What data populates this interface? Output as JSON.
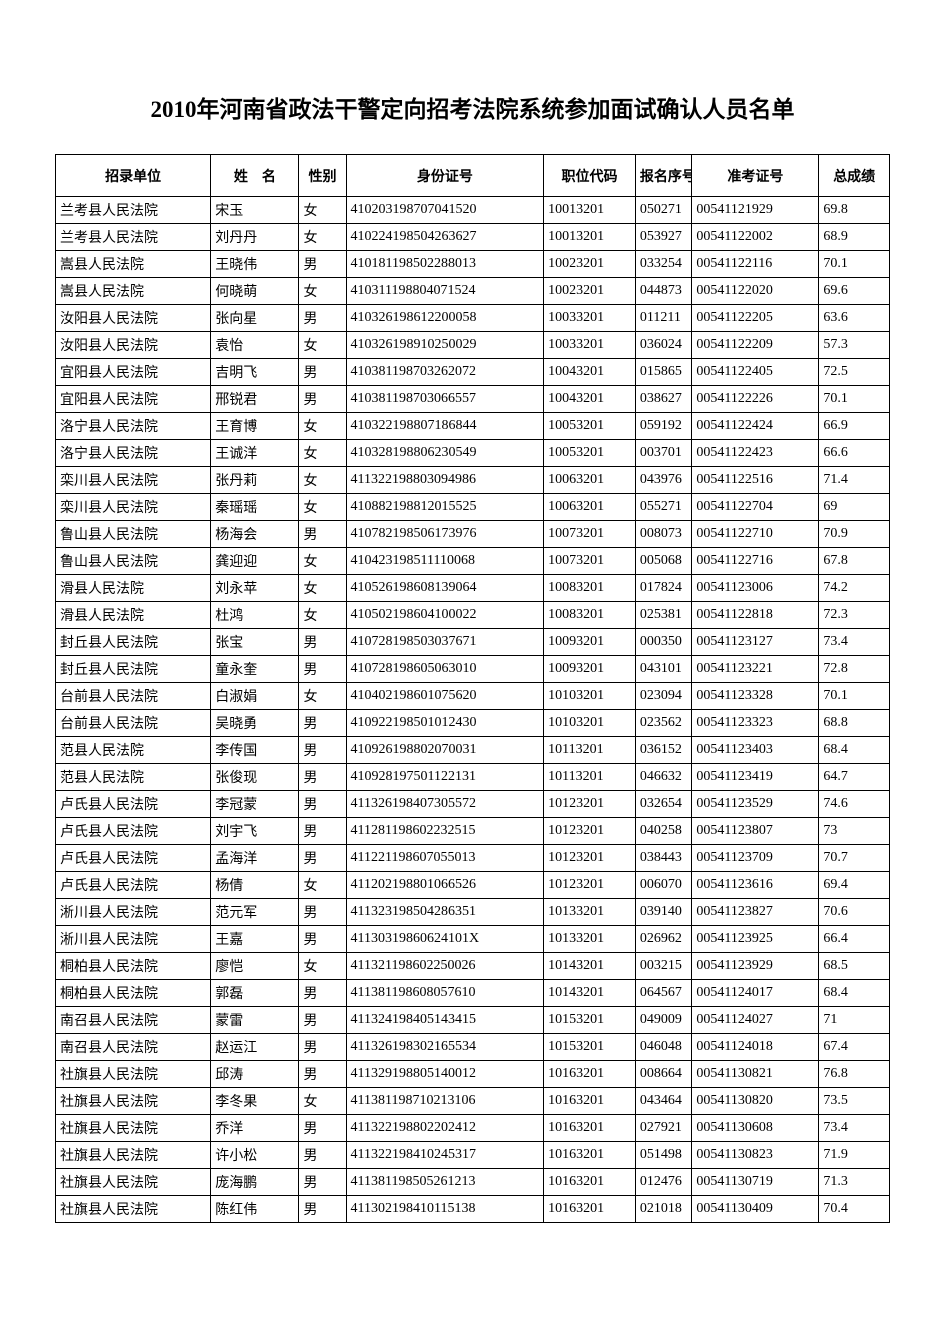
{
  "title": "2010年河南省政法干警定向招考法院系统参加面试确认人员名单",
  "columns": [
    "招录单位",
    "姓　名",
    "性别",
    "身份证号",
    "职位代码",
    "报名序号",
    "准考证号",
    "总成绩"
  ],
  "rows": [
    {
      "unit": "兰考县人民法院",
      "name": "宋玉",
      "gender": "女",
      "id": "410203198707041520",
      "position": "10013201",
      "seq": "050271",
      "exam": "00541121929",
      "score": "69.8"
    },
    {
      "unit": "兰考县人民法院",
      "name": "刘丹丹",
      "gender": "女",
      "id": "410224198504263627",
      "position": "10013201",
      "seq": "053927",
      "exam": "00541122002",
      "score": "68.9"
    },
    {
      "unit": "嵩县人民法院",
      "name": "王晓伟",
      "gender": "男",
      "id": "410181198502288013",
      "position": "10023201",
      "seq": "033254",
      "exam": "00541122116",
      "score": "70.1"
    },
    {
      "unit": "嵩县人民法院",
      "name": "何晓萌",
      "gender": "女",
      "id": "410311198804071524",
      "position": "10023201",
      "seq": "044873",
      "exam": "00541122020",
      "score": "69.6"
    },
    {
      "unit": "汝阳县人民法院",
      "name": "张向星",
      "gender": "男",
      "id": "410326198612200058",
      "position": "10033201",
      "seq": "011211",
      "exam": "00541122205",
      "score": "63.6"
    },
    {
      "unit": "汝阳县人民法院",
      "name": "袁怡",
      "gender": "女",
      "id": "410326198910250029",
      "position": "10033201",
      "seq": "036024",
      "exam": "00541122209",
      "score": "57.3"
    },
    {
      "unit": "宜阳县人民法院",
      "name": "吉明飞",
      "gender": "男",
      "id": "410381198703262072",
      "position": "10043201",
      "seq": "015865",
      "exam": "00541122405",
      "score": "72.5"
    },
    {
      "unit": "宜阳县人民法院",
      "name": "邢锐君",
      "gender": "男",
      "id": "410381198703066557",
      "position": "10043201",
      "seq": "038627",
      "exam": "00541122226",
      "score": "70.1"
    },
    {
      "unit": "洛宁县人民法院",
      "name": "王育博",
      "gender": "女",
      "id": "410322198807186844",
      "position": "10053201",
      "seq": "059192",
      "exam": "00541122424",
      "score": "66.9"
    },
    {
      "unit": "洛宁县人民法院",
      "name": "王诚洋",
      "gender": "女",
      "id": "410328198806230549",
      "position": "10053201",
      "seq": "003701",
      "exam": "00541122423",
      "score": "66.6"
    },
    {
      "unit": "栾川县人民法院",
      "name": "张丹莉",
      "gender": "女",
      "id": "411322198803094986",
      "position": "10063201",
      "seq": "043976",
      "exam": "00541122516",
      "score": "71.4"
    },
    {
      "unit": "栾川县人民法院",
      "name": "秦瑶瑶",
      "gender": "女",
      "id": "410882198812015525",
      "position": "10063201",
      "seq": "055271",
      "exam": "00541122704",
      "score": "69"
    },
    {
      "unit": "鲁山县人民法院",
      "name": "杨海会",
      "gender": "男",
      "id": "410782198506173976",
      "position": "10073201",
      "seq": "008073",
      "exam": "00541122710",
      "score": "70.9"
    },
    {
      "unit": "鲁山县人民法院",
      "name": "龚迎迎",
      "gender": "女",
      "id": "410423198511110068",
      "position": "10073201",
      "seq": "005068",
      "exam": "00541122716",
      "score": "67.8"
    },
    {
      "unit": "滑县人民法院",
      "name": "刘永苹",
      "gender": "女",
      "id": "410526198608139064",
      "position": "10083201",
      "seq": "017824",
      "exam": "00541123006",
      "score": "74.2"
    },
    {
      "unit": "滑县人民法院",
      "name": "杜鸿",
      "gender": "女",
      "id": "410502198604100022",
      "position": "10083201",
      "seq": "025381",
      "exam": "00541122818",
      "score": "72.3"
    },
    {
      "unit": "封丘县人民法院",
      "name": "张宝",
      "gender": "男",
      "id": "410728198503037671",
      "position": "10093201",
      "seq": "000350",
      "exam": "00541123127",
      "score": "73.4"
    },
    {
      "unit": "封丘县人民法院",
      "name": "童永奎",
      "gender": "男",
      "id": "410728198605063010",
      "position": "10093201",
      "seq": "043101",
      "exam": "00541123221",
      "score": "72.8"
    },
    {
      "unit": "台前县人民法院",
      "name": "白淑娟",
      "gender": "女",
      "id": "410402198601075620",
      "position": "10103201",
      "seq": "023094",
      "exam": "00541123328",
      "score": "70.1"
    },
    {
      "unit": "台前县人民法院",
      "name": "吴晓勇",
      "gender": "男",
      "id": "410922198501012430",
      "position": "10103201",
      "seq": "023562",
      "exam": "00541123323",
      "score": "68.8"
    },
    {
      "unit": "范县人民法院",
      "name": "李传国",
      "gender": "男",
      "id": "410926198802070031",
      "position": "10113201",
      "seq": "036152",
      "exam": "00541123403",
      "score": "68.4"
    },
    {
      "unit": "范县人民法院",
      "name": "张俊现",
      "gender": "男",
      "id": "410928197501122131",
      "position": "10113201",
      "seq": "046632",
      "exam": "00541123419",
      "score": "64.7"
    },
    {
      "unit": "卢氏县人民法院",
      "name": "李冠蒙",
      "gender": "男",
      "id": "411326198407305572",
      "position": "10123201",
      "seq": "032654",
      "exam": "00541123529",
      "score": "74.6"
    },
    {
      "unit": "卢氏县人民法院",
      "name": "刘宇飞",
      "gender": "男",
      "id": "411281198602232515",
      "position": "10123201",
      "seq": "040258",
      "exam": "00541123807",
      "score": "73"
    },
    {
      "unit": "卢氏县人民法院",
      "name": "孟海洋",
      "gender": "男",
      "id": "411221198607055013",
      "position": "10123201",
      "seq": "038443",
      "exam": "00541123709",
      "score": "70.7"
    },
    {
      "unit": "卢氏县人民法院",
      "name": "杨倩",
      "gender": "女",
      "id": "411202198801066526",
      "position": "10123201",
      "seq": "006070",
      "exam": "00541123616",
      "score": "69.4"
    },
    {
      "unit": "淅川县人民法院",
      "name": "范元军",
      "gender": "男",
      "id": "411323198504286351",
      "position": "10133201",
      "seq": "039140",
      "exam": "00541123827",
      "score": "70.6"
    },
    {
      "unit": "淅川县人民法院",
      "name": "王嘉",
      "gender": "男",
      "id": "41130319860624101X",
      "position": "10133201",
      "seq": "026962",
      "exam": "00541123925",
      "score": "66.4"
    },
    {
      "unit": "桐柏县人民法院",
      "name": "廖恺",
      "gender": "女",
      "id": "411321198602250026",
      "position": "10143201",
      "seq": "003215",
      "exam": "00541123929",
      "score": "68.5"
    },
    {
      "unit": "桐柏县人民法院",
      "name": "郭磊",
      "gender": "男",
      "id": "411381198608057610",
      "position": "10143201",
      "seq": "064567",
      "exam": "00541124017",
      "score": "68.4"
    },
    {
      "unit": "南召县人民法院",
      "name": "蒙雷",
      "gender": "男",
      "id": "411324198405143415",
      "position": "10153201",
      "seq": "049009",
      "exam": "00541124027",
      "score": "71"
    },
    {
      "unit": "南召县人民法院",
      "name": "赵运江",
      "gender": "男",
      "id": "411326198302165534",
      "position": "10153201",
      "seq": "046048",
      "exam": "00541124018",
      "score": "67.4"
    },
    {
      "unit": "社旗县人民法院",
      "name": "邱涛",
      "gender": "男",
      "id": "411329198805140012",
      "position": "10163201",
      "seq": "008664",
      "exam": "00541130821",
      "score": "76.8"
    },
    {
      "unit": "社旗县人民法院",
      "name": "李冬果",
      "gender": "女",
      "id": "411381198710213106",
      "position": "10163201",
      "seq": "043464",
      "exam": "00541130820",
      "score": "73.5"
    },
    {
      "unit": "社旗县人民法院",
      "name": "乔洋",
      "gender": "男",
      "id": "411322198802202412",
      "position": "10163201",
      "seq": "027921",
      "exam": "00541130608",
      "score": "73.4"
    },
    {
      "unit": "社旗县人民法院",
      "name": "许小松",
      "gender": "男",
      "id": "411322198410245317",
      "position": "10163201",
      "seq": "051498",
      "exam": "00541130823",
      "score": "71.9"
    },
    {
      "unit": "社旗县人民法院",
      "name": "庞海鹏",
      "gender": "男",
      "id": "411381198505261213",
      "position": "10163201",
      "seq": "012476",
      "exam": "00541130719",
      "score": "71.3"
    },
    {
      "unit": "社旗县人民法院",
      "name": "陈红伟",
      "gender": "男",
      "id": "411302198410115138",
      "position": "10163201",
      "seq": "021018",
      "exam": "00541130409",
      "score": "70.4"
    }
  ]
}
